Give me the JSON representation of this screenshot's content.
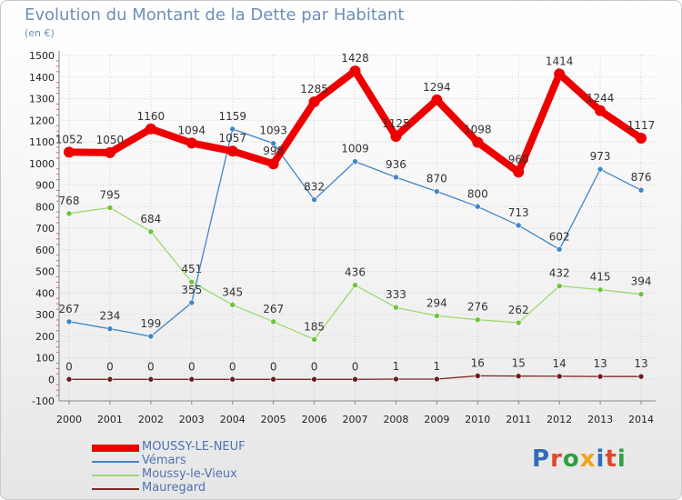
{
  "header": {
    "title": "Evolution du Montant de la Dette par Habitant",
    "subtitle": "(en €)"
  },
  "colors": {
    "title": "#6c8fb8",
    "legend_text": "#4e73b3",
    "axis": "#888888",
    "grid": "#d0d0d0"
  },
  "logo": {
    "text": "Proxiti",
    "letter_colors": [
      "#2f6db8",
      "#e2462b",
      "#2f9e3e",
      "#f0a21b",
      "#2f6db8",
      "#e2462b",
      "#2f9e3e"
    ]
  },
  "chart_data": {
    "type": "line",
    "title": "Evolution du Montant de la Dette par Habitant",
    "subtitle": "(en €)",
    "xlabel": "",
    "ylabel": "",
    "x": [
      "2000",
      "2001",
      "2002",
      "2003",
      "2004",
      "2005",
      "2006",
      "2007",
      "2008",
      "2009",
      "2010",
      "2011",
      "2012",
      "2013",
      "2014"
    ],
    "ylim": [
      -100,
      1500
    ],
    "yticks": [
      -100,
      0,
      100,
      200,
      300,
      400,
      500,
      600,
      700,
      800,
      900,
      1000,
      1100,
      1200,
      1300,
      1400,
      1500
    ],
    "grid": true,
    "legend_position": "bottom-left",
    "series": [
      {
        "name": "MOUSSY-LE-NEUF",
        "color": "#ee0000",
        "marker": "#ee0000",
        "thick": true,
        "values": [
          1052,
          1050,
          1160,
          1094,
          1057,
          998,
          1285,
          1428,
          1125,
          1294,
          1098,
          960,
          1414,
          1244,
          1117
        ]
      },
      {
        "name": "Vémars",
        "color": "#3f85c8",
        "marker": "#3f85c8",
        "thick": false,
        "values": [
          267,
          234,
          199,
          355,
          1159,
          1093,
          832,
          1009,
          936,
          870,
          800,
          713,
          602,
          973,
          876
        ]
      },
      {
        "name": "Moussy-le-Vieux",
        "color": "#9dd96f",
        "marker": "#6ec33a",
        "thick": false,
        "values": [
          768,
          795,
          684,
          451,
          345,
          267,
          185,
          436,
          333,
          294,
          276,
          262,
          432,
          415,
          394
        ]
      },
      {
        "name": "Mauregard",
        "color": "#7b2a2a",
        "marker": "#6b1c1c",
        "thick": false,
        "values": [
          0,
          0,
          0,
          0,
          0,
          0,
          0,
          0,
          1,
          1,
          16,
          15,
          14,
          13,
          13
        ]
      }
    ]
  }
}
